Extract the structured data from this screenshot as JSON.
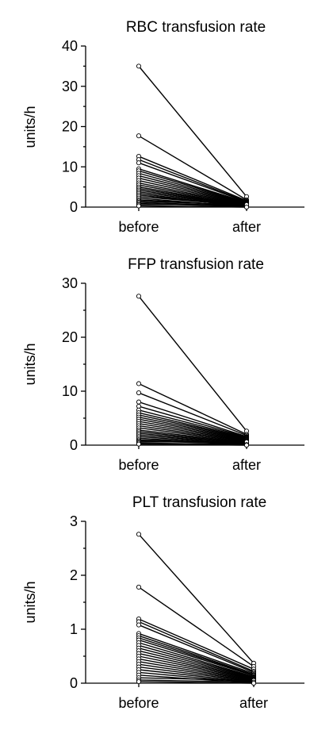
{
  "chart_data": [
    {
      "type": "line",
      "title": "RBC transfusion rate",
      "xlabel": "",
      "ylabel": "units/h",
      "categories": [
        "before",
        "after"
      ],
      "ylim": [
        0,
        40
      ],
      "yticks": [
        0,
        10,
        20,
        30,
        40
      ],
      "grid": false,
      "pairs": [
        [
          35.0,
          2.6
        ],
        [
          17.7,
          1.8
        ],
        [
          12.6,
          1.6
        ],
        [
          11.8,
          1.4
        ],
        [
          11.0,
          1.3
        ],
        [
          9.5,
          1.2
        ],
        [
          9.0,
          1.1
        ],
        [
          8.4,
          1.0
        ],
        [
          7.8,
          0.9
        ],
        [
          7.2,
          0.8
        ],
        [
          6.6,
          0.7
        ],
        [
          6.0,
          0.6
        ],
        [
          5.5,
          0.5
        ],
        [
          5.0,
          0.4
        ],
        [
          4.6,
          0.3
        ],
        [
          4.2,
          0.2
        ],
        [
          3.8,
          0.1
        ],
        [
          3.4,
          0.0
        ],
        [
          3.0,
          0.2
        ],
        [
          2.6,
          0.4
        ],
        [
          2.2,
          0.1
        ],
        [
          1.8,
          0.3
        ],
        [
          1.5,
          0.5
        ],
        [
          1.2,
          0.2
        ],
        [
          0.9,
          0.1
        ],
        [
          0.6,
          0.6
        ],
        [
          0.3,
          0.0
        ]
      ]
    },
    {
      "type": "line",
      "title": "FFP transfusion rate",
      "xlabel": "",
      "ylabel": "units/h",
      "categories": [
        "before",
        "after"
      ],
      "ylim": [
        0,
        30
      ],
      "yticks": [
        0,
        10,
        20,
        30
      ],
      "grid": false,
      "pairs": [
        [
          27.6,
          2.6
        ],
        [
          11.4,
          2.0
        ],
        [
          9.7,
          1.8
        ],
        [
          8.0,
          1.6
        ],
        [
          7.2,
          1.5
        ],
        [
          6.5,
          1.4
        ],
        [
          6.0,
          1.3
        ],
        [
          5.6,
          1.2
        ],
        [
          5.2,
          1.1
        ],
        [
          4.8,
          1.0
        ],
        [
          4.4,
          0.9
        ],
        [
          4.0,
          0.8
        ],
        [
          3.6,
          0.7
        ],
        [
          3.2,
          0.6
        ],
        [
          2.8,
          0.5
        ],
        [
          2.5,
          0.4
        ],
        [
          2.2,
          0.3
        ],
        [
          1.9,
          0.2
        ],
        [
          1.6,
          0.1
        ],
        [
          1.3,
          0.0
        ],
        [
          1.0,
          0.3
        ],
        [
          0.8,
          0.2
        ],
        [
          0.6,
          0.6
        ],
        [
          0.4,
          0.1
        ],
        [
          0.2,
          0.0
        ]
      ]
    },
    {
      "type": "line",
      "title": "PLT transfusion rate",
      "xlabel": "",
      "ylabel": "units/h",
      "categories": [
        "before",
        "after"
      ],
      "ylim": [
        0,
        3
      ],
      "yticks": [
        0,
        1,
        2,
        3
      ],
      "grid": false,
      "pairs": [
        [
          2.76,
          0.37
        ],
        [
          1.78,
          0.31
        ],
        [
          1.19,
          0.26
        ],
        [
          1.14,
          0.22
        ],
        [
          1.08,
          0.2
        ],
        [
          0.92,
          0.18
        ],
        [
          0.88,
          0.16
        ],
        [
          0.84,
          0.15
        ],
        [
          0.8,
          0.14
        ],
        [
          0.75,
          0.12
        ],
        [
          0.7,
          0.11
        ],
        [
          0.65,
          0.1
        ],
        [
          0.6,
          0.09
        ],
        [
          0.55,
          0.08
        ],
        [
          0.5,
          0.07
        ],
        [
          0.45,
          0.06
        ],
        [
          0.4,
          0.05
        ],
        [
          0.35,
          0.04
        ],
        [
          0.3,
          0.03
        ],
        [
          0.25,
          0.02
        ],
        [
          0.2,
          0.01
        ],
        [
          0.15,
          0.0
        ],
        [
          0.1,
          0.05
        ],
        [
          0.06,
          0.02
        ],
        [
          0.03,
          0.0
        ]
      ]
    }
  ]
}
